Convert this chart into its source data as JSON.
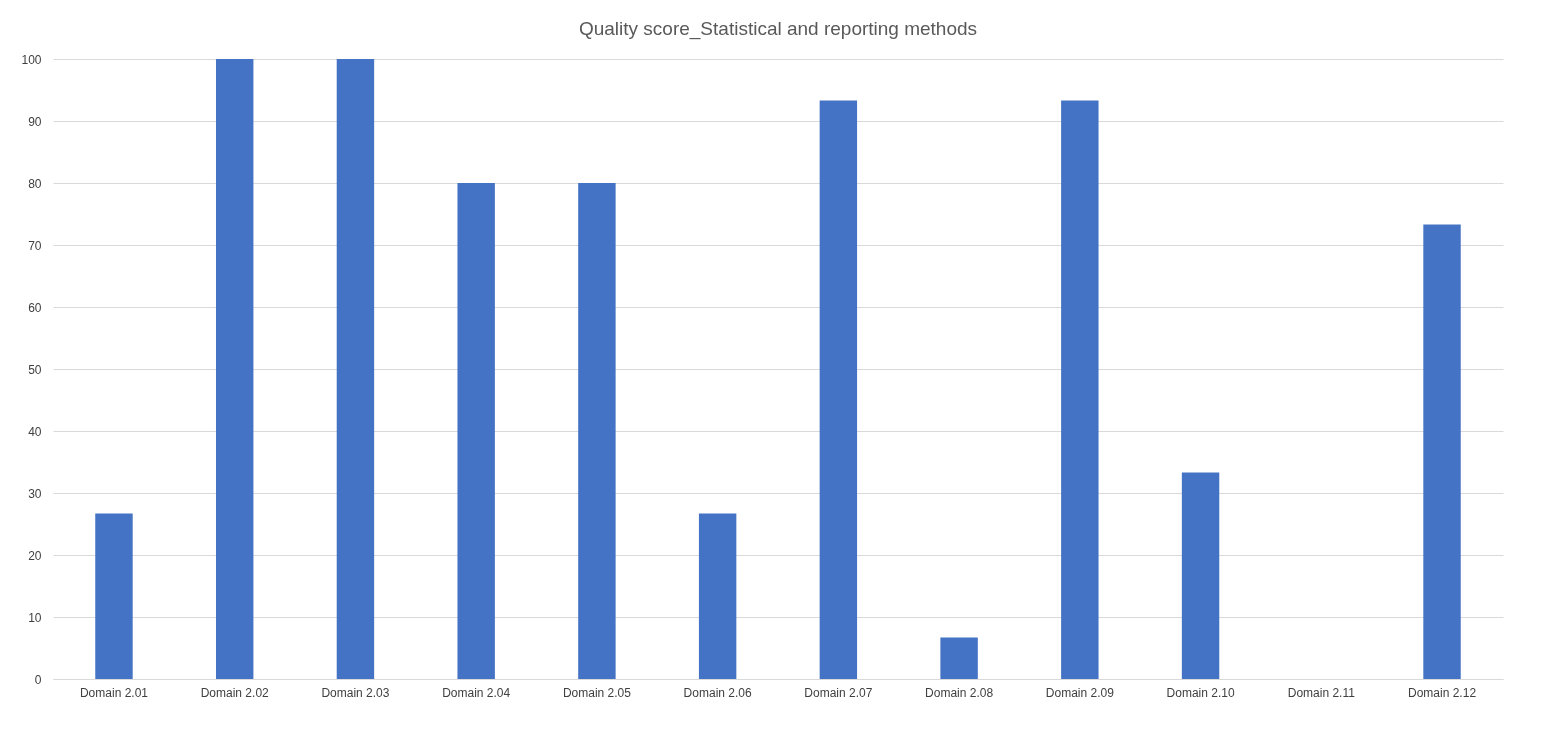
{
  "chart_data": {
    "type": "bar",
    "title": "Quality score_Statistical and reporting methods",
    "categories": [
      "Domain 2.01",
      "Domain 2.02",
      "Domain 2.03",
      "Domain 2.04",
      "Domain 2.05",
      "Domain 2.06",
      "Domain 2.07",
      "Domain 2.08",
      "Domain 2.09",
      "Domain 2.10",
      "Domain 2.11",
      "Domain 2.12"
    ],
    "values": [
      26.7,
      100,
      100,
      80,
      80,
      26.7,
      93.3,
      6.7,
      93.3,
      33.3,
      0,
      73.3
    ],
    "color": "#4472c4",
    "ylim": [
      0,
      100
    ],
    "yticks": [
      0,
      10,
      20,
      30,
      40,
      50,
      60,
      70,
      80,
      90,
      100
    ],
    "grid": "y"
  }
}
